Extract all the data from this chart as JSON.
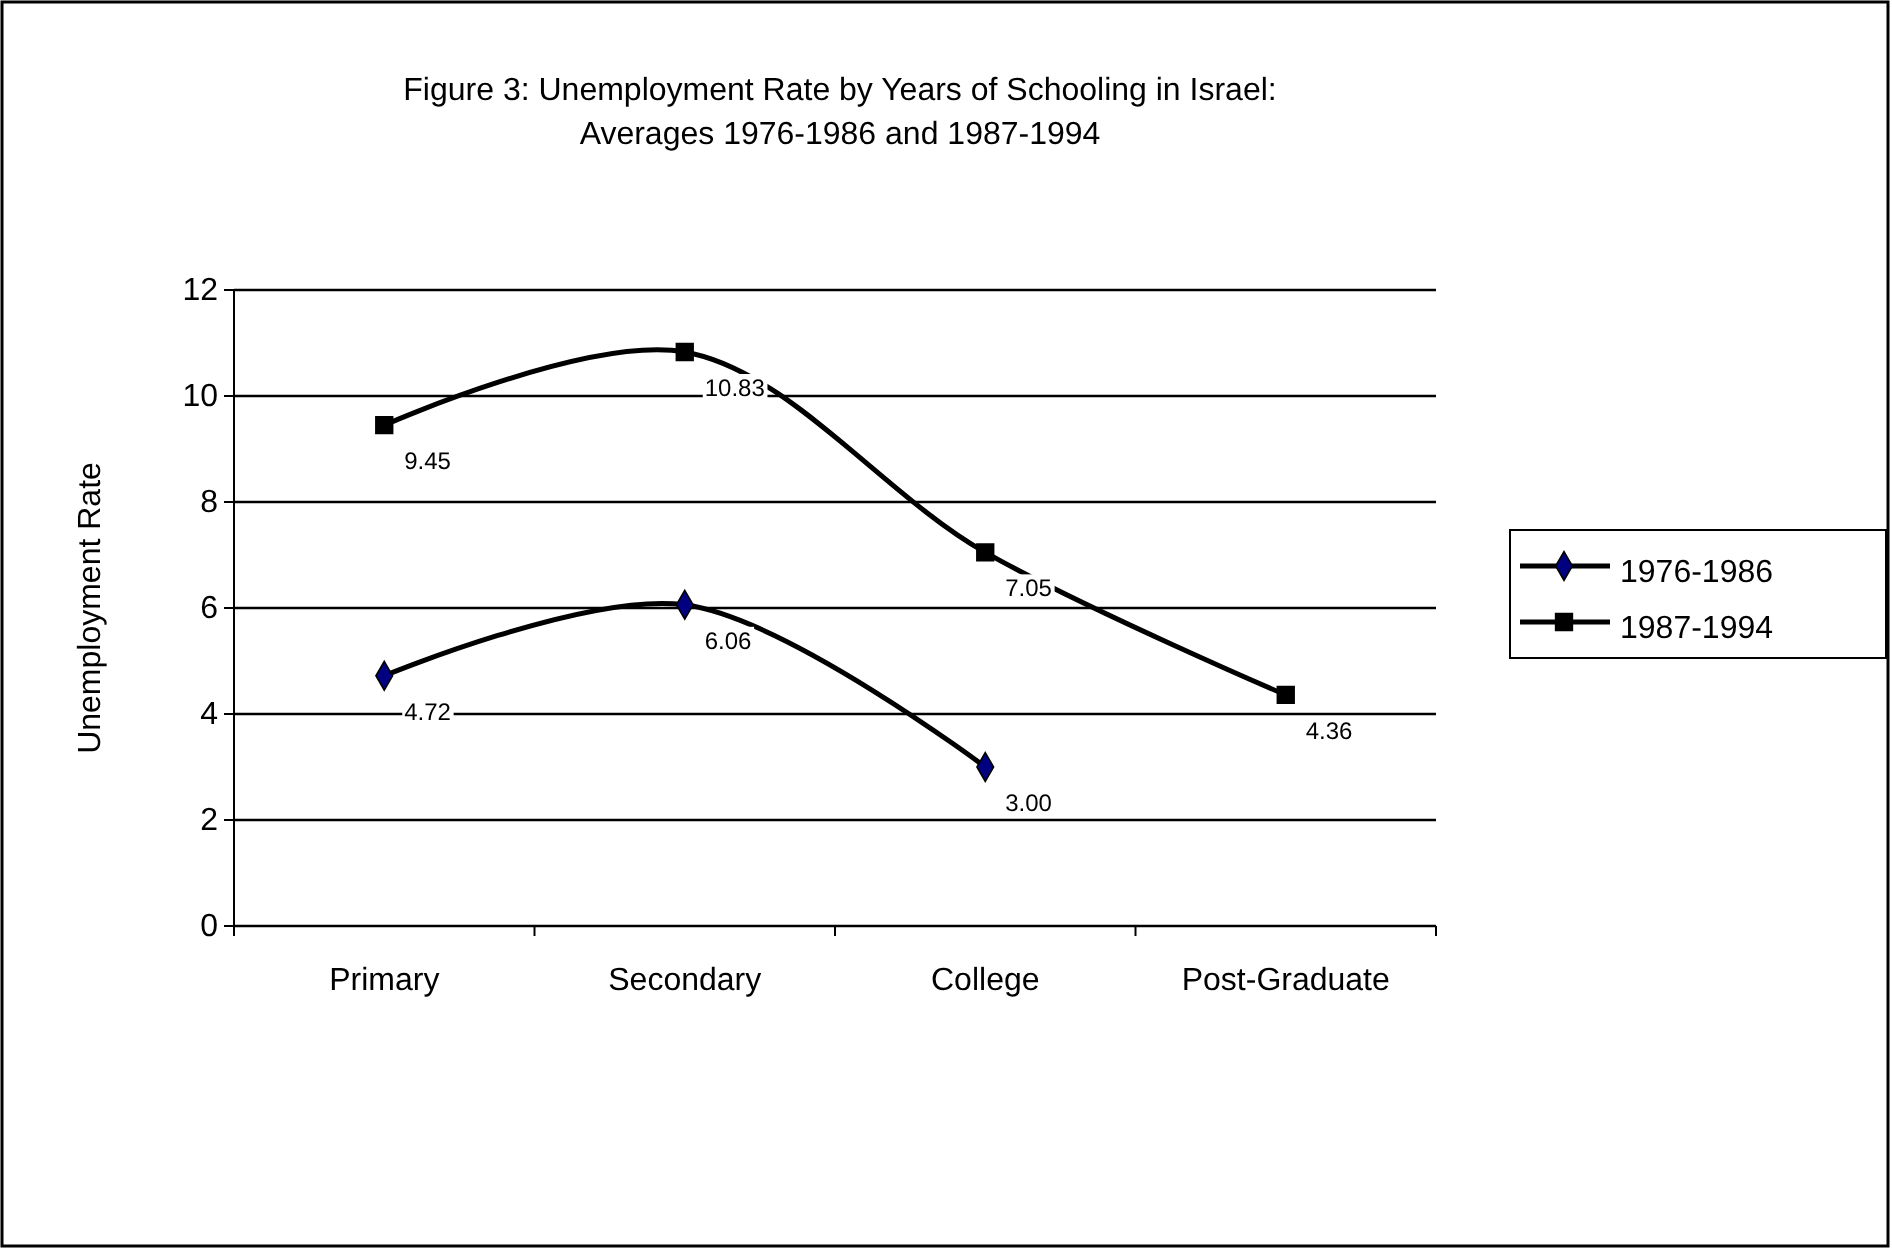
{
  "chart_data": {
    "type": "line",
    "title": "Figure 3: Unemployment Rate by Years of Schooling in Israel:\nAverages 1976-1986 and 1987-1994",
    "ylabel": "Unemployment Rate",
    "categories": [
      "Primary",
      "Secondary",
      "College",
      "Post-Graduate"
    ],
    "series": [
      {
        "name": "1976-1986",
        "color": "#000080",
        "marker": "diamond",
        "values": [
          4.72,
          6.06,
          3.0,
          null
        ],
        "value_labels": [
          "4.72",
          "6.06",
          "3.00",
          null
        ]
      },
      {
        "name": "1987-1994",
        "color": "#000000",
        "marker": "square",
        "values": [
          9.45,
          10.83,
          7.05,
          4.36
        ],
        "value_labels": [
          "9.45",
          "10.83",
          "7.05",
          "4.36"
        ]
      }
    ],
    "ylim": [
      0,
      12
    ],
    "yticks": [
      0,
      2,
      4,
      6,
      8,
      10,
      12
    ],
    "grid": "y",
    "legend": "right"
  }
}
